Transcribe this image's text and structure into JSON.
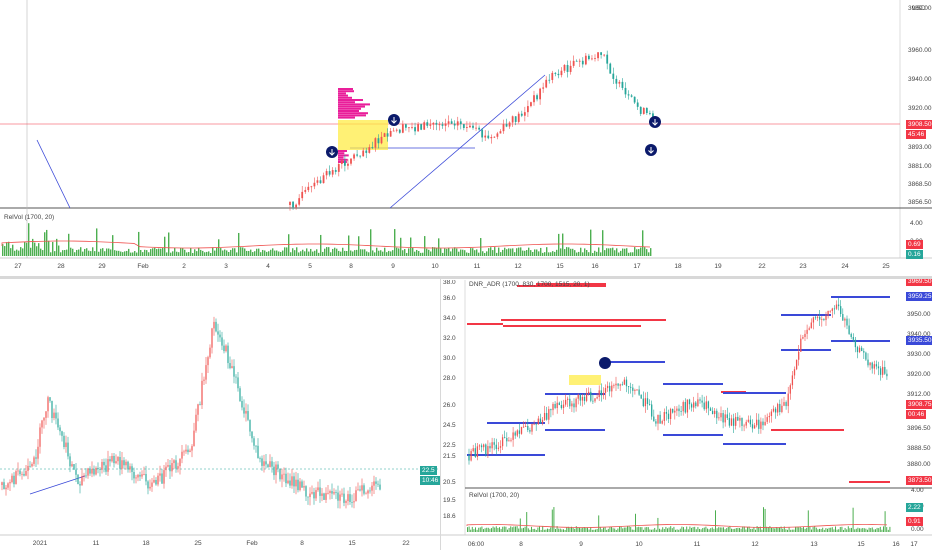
{
  "currency": "USD",
  "top": {
    "price_ticks": [
      "3980.00",
      "3960.00",
      "3940.00",
      "3920.00",
      "3908.50",
      "3893.00",
      "3881.00",
      "3868.50",
      "3856.50"
    ],
    "price_tag": "3908.50",
    "price_tag2": "45:46",
    "vol_label": "RelVol (1700, 20)",
    "vol_ticks": [
      "4.00",
      "2.00"
    ],
    "vol_tag1": "0.69",
    "vol_tag2": "0.16",
    "date_ticks": [
      "27",
      "28",
      "29",
      "Feb",
      "2",
      "3",
      "4",
      "5",
      "8",
      "9",
      "10",
      "11",
      "12",
      "15",
      "16",
      "17",
      "18",
      "19",
      "22",
      "23",
      "24",
      "25"
    ]
  },
  "left": {
    "date_ticks": [
      "2021",
      "11",
      "18",
      "25",
      "Feb",
      "8",
      "15",
      "22"
    ],
    "price_tag1": "22.5",
    "price_tag2": "10:46"
  },
  "right": {
    "indicator_label": "DNR_ADR (1700, 830, 1700, 1515, 20, 1)",
    "price_ticks": [
      "38.0",
      "36.0",
      "34.0",
      "32.0",
      "30.0",
      "28.0",
      "26.0",
      "24.5",
      "22.5",
      "21.5",
      "20.5",
      "19.5",
      "18.6"
    ],
    "right_ticks": [
      "3950.00",
      "3940.00",
      "3930.00",
      "3920.00",
      "3912.00",
      "3896.50",
      "3888.50",
      "3880.00"
    ],
    "tags": [
      "3969.50",
      "3959.25",
      "3935.50",
      "3908.75",
      "00:46",
      "3873.50"
    ],
    "vol_label": "RelVol (1700, 20)",
    "vol_ticks": [
      "4.00",
      "2.00",
      "0.00"
    ],
    "vol_tag1": "2.22",
    "vol_tag2": "0.91",
    "date_ticks": [
      "06:00",
      "8",
      "9",
      "10",
      "11",
      "12",
      "13",
      "15",
      "16",
      "17"
    ]
  },
  "colors": {
    "up": "#26a69a",
    "down": "#ef5350",
    "blue_level": "#3a49d8",
    "red_level": "#f23645",
    "vol": "#4caf50",
    "profile_pink": "#e91e9a",
    "profile_yellow": "#ffeb3b"
  }
}
